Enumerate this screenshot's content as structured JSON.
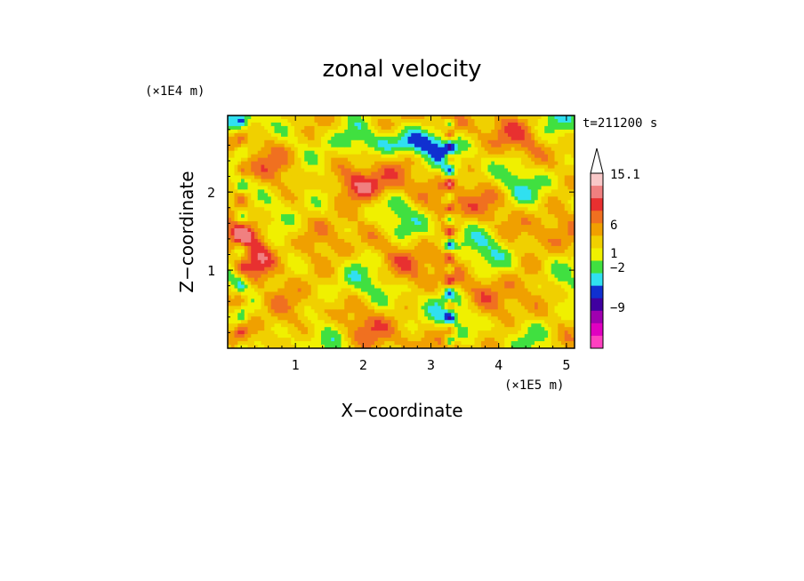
{
  "chart_data": {
    "type": "heatmap",
    "title": "zonal velocity",
    "xlabel": "X−coordinate",
    "ylabel": "Z−coordinate",
    "x_unit": "(×1E5 m)",
    "y_unit": "(×1E4 m)",
    "time_label": "t=211200 s",
    "xlim": [
      0,
      5.12
    ],
    "ylim": [
      0,
      2.98
    ],
    "x_ticks": [
      1,
      2,
      3,
      4,
      5
    ],
    "y_ticks": [
      1,
      2
    ],
    "x_tick_labels": [
      "1",
      "2",
      "3",
      "4",
      "5"
    ],
    "y_tick_labels": [
      "1",
      "2"
    ],
    "colorbar": {
      "labels": [
        "15.1",
        "6",
        "1",
        "−2",
        "−9"
      ],
      "colors_top_to_bottom": [
        "#f9c8c8",
        "#f08080",
        "#e83030",
        "#f07020",
        "#f0a000",
        "#f0d000",
        "#f0f000",
        "#40e040",
        "#30e0f0",
        "#1030d0",
        "#4000a0",
        "#a000b0",
        "#e000c0",
        "#ff40c0"
      ]
    },
    "grid": false
  }
}
